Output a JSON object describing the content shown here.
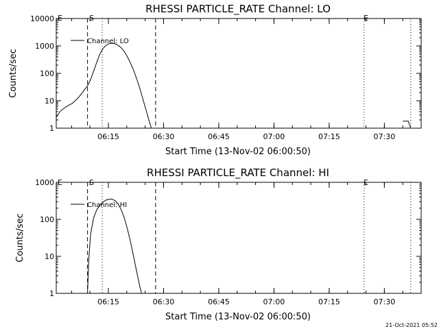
{
  "footer": {
    "stamp": "21-Oct-2021 05:52"
  },
  "chart_data": [
    {
      "type": "line",
      "title": "RHESSI PARTICLE_RATE Channel: LO",
      "xlabel": "Start Time (13-Nov-02 06:00:50)",
      "ylabel": "Counts/sec",
      "yscale": "log",
      "ylim": [
        1,
        10000
      ],
      "yticks": [
        1,
        10,
        100,
        1000,
        10000
      ],
      "ytick_labels": [
        "1",
        "10",
        "100",
        "1000",
        "10000"
      ],
      "xlim": [
        "06:00:50",
        "07:40:00"
      ],
      "xticks": [
        "06:15",
        "06:30",
        "06:45",
        "07:00",
        "07:15",
        "07:30"
      ],
      "grid": false,
      "legend": {
        "placement": "top-left",
        "entries": [
          "Channel: LO"
        ]
      },
      "markers": {
        "start_label": "S",
        "end_label": "E",
        "left_label": "E"
      },
      "vlines": [
        {
          "x": "06:09:20",
          "style": "dashed"
        },
        {
          "x": "06:13:20",
          "style": "dotted"
        },
        {
          "x": "06:27:50",
          "style": "dashed"
        },
        {
          "x": "07:24:30",
          "style": "dotted"
        },
        {
          "x": "07:37:10",
          "style": "dotted"
        }
      ],
      "series": [
        {
          "name": "Channel: LO",
          "segments": [
            [
              [
                "06:00:50",
                2.5
              ],
              [
                "06:01:50",
                4
              ],
              [
                "06:02:40",
                5
              ],
              [
                "06:03:30",
                6
              ],
              [
                "06:04:20",
                7
              ],
              [
                "06:05:10",
                8
              ],
              [
                "06:06:00",
                10
              ],
              [
                "06:06:50",
                13
              ],
              [
                "06:07:40",
                18
              ],
              [
                "06:08:30",
                25
              ],
              [
                "06:09:20",
                35
              ],
              [
                "06:10:10",
                60
              ],
              [
                "06:11:00",
                120
              ],
              [
                "06:11:50",
                250
              ],
              [
                "06:12:40",
                500
              ],
              [
                "06:13:30",
                800
              ],
              [
                "06:14:20",
                1050
              ],
              [
                "06:15:10",
                1200
              ],
              [
                "06:16:00",
                1250
              ],
              [
                "06:16:50",
                1200
              ],
              [
                "06:17:40",
                1050
              ],
              [
                "06:18:30",
                850
              ],
              [
                "06:19:20",
                620
              ],
              [
                "06:20:10",
                400
              ],
              [
                "06:21:00",
                240
              ],
              [
                "06:21:50",
                130
              ],
              [
                "06:22:40",
                65
              ],
              [
                "06:23:30",
                30
              ],
              [
                "06:24:20",
                12
              ],
              [
                "06:25:10",
                5
              ],
              [
                "06:26:00",
                2
              ],
              [
                "06:26:40",
                1
              ]
            ],
            [
              [
                "07:35:00",
                1.8
              ],
              [
                "07:36:30",
                1.8
              ],
              [
                "07:37:10",
                1
              ]
            ]
          ]
        }
      ]
    },
    {
      "type": "line",
      "title": "RHESSI PARTICLE_RATE Channel: HI",
      "xlabel": "Start Time (13-Nov-02 06:00:50)",
      "ylabel": "Counts/sec",
      "yscale": "log",
      "ylim": [
        1,
        1000
      ],
      "yticks": [
        1,
        10,
        100,
        1000
      ],
      "ytick_labels": [
        "1",
        "10",
        "100",
        "1000"
      ],
      "xlim": [
        "06:00:50",
        "07:40:00"
      ],
      "xticks": [
        "06:15",
        "06:30",
        "06:45",
        "07:00",
        "07:15",
        "07:30"
      ],
      "grid": false,
      "legend": {
        "placement": "top-left",
        "entries": [
          "Channel: HI"
        ]
      },
      "markers": {
        "start_label": "S",
        "end_label": "E",
        "left_label": "E"
      },
      "vlines": [
        {
          "x": "06:09:20",
          "style": "dashed"
        },
        {
          "x": "06:13:20",
          "style": "dotted"
        },
        {
          "x": "06:27:50",
          "style": "dashed"
        },
        {
          "x": "07:24:30",
          "style": "dotted"
        },
        {
          "x": "07:37:10",
          "style": "dotted"
        }
      ],
      "series": [
        {
          "name": "Channel: HI",
          "segments": [
            [
              [
                "06:09:20",
                1
              ],
              [
                "06:09:40",
                8
              ],
              [
                "06:10:10",
                40
              ],
              [
                "06:11:00",
                110
              ],
              [
                "06:11:50",
                180
              ],
              [
                "06:12:40",
                240
              ],
              [
                "06:13:30",
                290
              ],
              [
                "06:14:20",
                330
              ],
              [
                "06:15:10",
                350
              ],
              [
                "06:16:00",
                350
              ],
              [
                "06:16:50",
                320
              ],
              [
                "06:17:40",
                260
              ],
              [
                "06:18:30",
                180
              ],
              [
                "06:19:20",
                110
              ],
              [
                "06:20:10",
                55
              ],
              [
                "06:21:00",
                25
              ],
              [
                "06:21:50",
                10
              ],
              [
                "06:22:40",
                4
              ],
              [
                "06:23:30",
                1.6
              ],
              [
                "06:24:00",
                1
              ]
            ]
          ]
        }
      ]
    }
  ]
}
